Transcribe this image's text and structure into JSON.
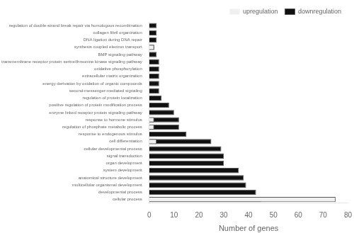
{
  "chart_data": {
    "type": "bar",
    "orientation": "horizontal",
    "stacked": false,
    "categories": [
      "regulation of double-strand break repair via homologous recombination",
      "collagen fibril organization",
      "DNA ligation during DNA repair",
      "synthesis coupled electron transport",
      "BMP signaling pathway",
      "transmembrane receptor protein serine/threonine kinase signaling pathway",
      "oxidative phosphorylation",
      "extracellular matrix organization",
      "energy derivation by oxidation of organic compounds",
      "second-messenger-mediated signaling",
      "regulation of protein localization",
      "positive regulation of protein modification process",
      "enzyme linked receptor protein signaling pathway",
      "response to hormone stimulus",
      "regulation of phosphate metabolic process",
      "response to endogenous stimulus",
      "cell differentiation",
      "cellular developmental process",
      "signal transduction",
      "organ development",
      "system development",
      "anatomical structure development",
      "multicellular organismal development",
      "developmental process",
      "cellular process"
    ],
    "series": [
      {
        "name": "upregulation",
        "color": "#f0f0f0",
        "values": [
          0,
          0,
          0,
          2,
          0,
          0,
          0,
          0,
          0,
          0,
          0,
          0,
          0,
          2,
          2,
          0,
          3,
          0,
          0,
          0,
          0,
          0,
          0,
          0,
          75
        ]
      },
      {
        "name": "downregulation",
        "color": "#111111",
        "values": [
          3,
          3,
          3,
          2,
          3,
          4,
          4,
          4,
          4,
          4,
          5,
          8,
          10,
          12,
          12,
          15,
          25,
          29,
          30,
          30,
          36,
          38,
          39,
          43,
          45
        ]
      }
    ],
    "xlabel": "Number of genes",
    "xlim": [
      0,
      80
    ],
    "xticks": [
      0,
      10,
      20,
      30,
      40,
      50,
      60,
      70,
      80
    ],
    "grid": false,
    "legend": "upper right"
  }
}
